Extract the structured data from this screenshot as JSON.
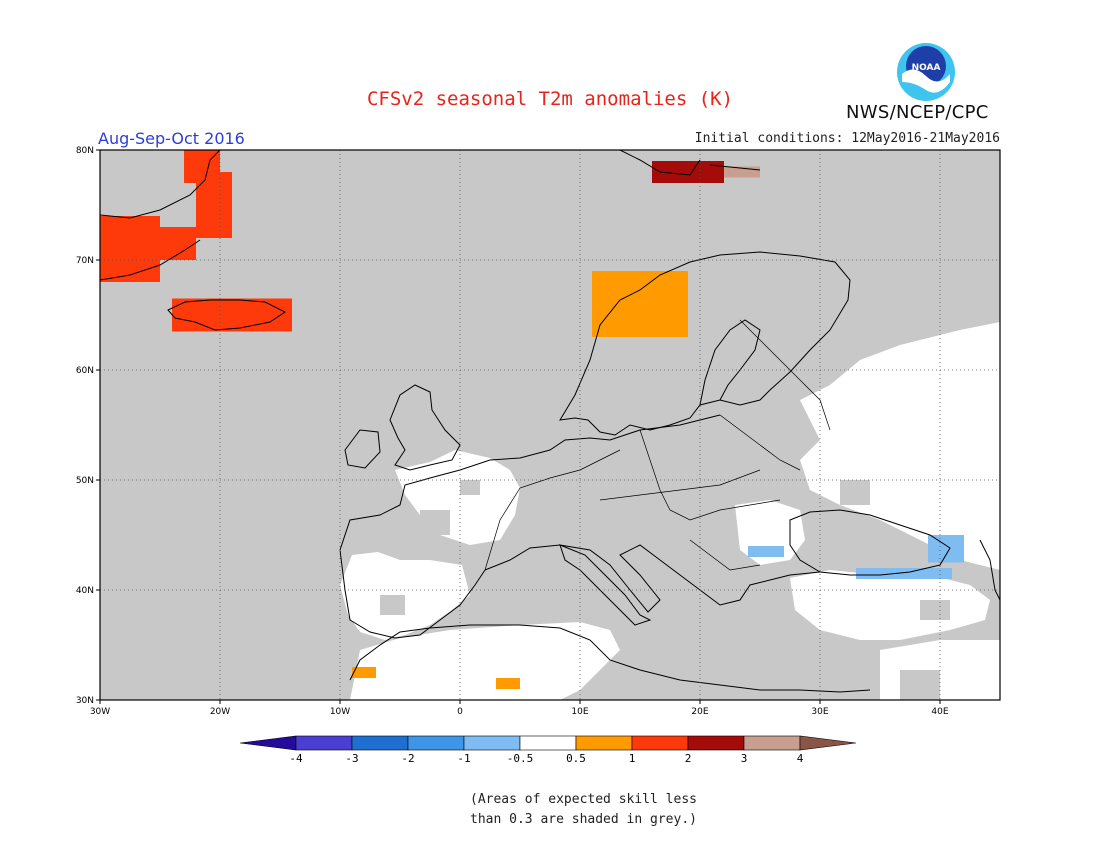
{
  "header": {
    "title": "CFSv2 seasonal T2m anomalies (K)",
    "agency": "NWS/NCEP/CPC",
    "logo_text": "NOAA",
    "period": "Aug-Sep-Oct 2016",
    "initial_conditions": "Initial conditions: 12May2016-21May2016"
  },
  "map": {
    "lon_range": [
      -30,
      45
    ],
    "lat_range": [
      30,
      80
    ],
    "lon_ticks": [
      {
        "value": -30,
        "label": "30W"
      },
      {
        "value": -20,
        "label": "20W"
      },
      {
        "value": -10,
        "label": "10W"
      },
      {
        "value": 0,
        "label": "0"
      },
      {
        "value": 10,
        "label": "10E"
      },
      {
        "value": 20,
        "label": "20E"
      },
      {
        "value": 30,
        "label": "30E"
      },
      {
        "value": 40,
        "label": "40E"
      }
    ],
    "lat_ticks": [
      {
        "value": 30,
        "label": "30N"
      },
      {
        "value": 40,
        "label": "40N"
      },
      {
        "value": 50,
        "label": "50N"
      },
      {
        "value": 60,
        "label": "60N"
      },
      {
        "value": 70,
        "label": "70N"
      },
      {
        "value": 80,
        "label": "80N"
      }
    ],
    "grid": true,
    "background_color": "#c8c8c8",
    "anomaly_patches": [
      {
        "name": "Greenland coast",
        "category": "1 to 2",
        "lon": [
          -30,
          -25
        ],
        "lat": [
          68,
          74
        ]
      },
      {
        "name": "Greenland east",
        "category": "1 to 2",
        "lon": [
          -25,
          -22
        ],
        "lat": [
          70,
          73
        ]
      },
      {
        "name": "Greenland far northeast",
        "category": "1 to 2",
        "lon": [
          -23,
          -20
        ],
        "lat": [
          77,
          80
        ]
      },
      {
        "name": "Greenland interior coast",
        "category": "1 to 2",
        "lon": [
          -22,
          -19
        ],
        "lat": [
          72,
          78
        ]
      },
      {
        "name": "Iceland",
        "category": "1 to 2",
        "lon": [
          -24,
          -14
        ],
        "lat": [
          63.5,
          66.5
        ]
      },
      {
        "name": "Svalbard",
        "category": "2 to 3",
        "lon": [
          16,
          22
        ],
        "lat": [
          77,
          79
        ]
      },
      {
        "name": "Svalbard east",
        "category": "3 to 4",
        "lon": [
          22,
          25
        ],
        "lat": [
          77.5,
          78.5
        ]
      },
      {
        "name": "Norway coast",
        "category": "0.5 to 1",
        "lon": [
          11,
          19
        ],
        "lat": [
          63,
          69
        ]
      },
      {
        "name": "Morocco",
        "category": "0.5 to 1",
        "lon": [
          -9,
          -7
        ],
        "lat": [
          32,
          33
        ]
      },
      {
        "name": "Algeria",
        "category": "0.5 to 1",
        "lon": [
          3,
          5
        ],
        "lat": [
          31,
          32
        ]
      },
      {
        "name": "Black Sea south",
        "category": "-1 to -0.5",
        "lon": [
          33,
          41
        ],
        "lat": [
          41,
          42
        ]
      },
      {
        "name": "Caucasus",
        "category": "-1 to -0.5",
        "lon": [
          39,
          42
        ],
        "lat": [
          42.5,
          45
        ]
      },
      {
        "name": "Lower Danube",
        "category": "-1 to -0.5",
        "lon": [
          24,
          27
        ],
        "lat": [
          43,
          44
        ]
      }
    ],
    "white_regions": [
      "Iberia",
      "France",
      "North Africa",
      "Turkey",
      "Ukraine",
      "Western Russia"
    ]
  },
  "colorbar": {
    "ticks": [
      "-4",
      "-3",
      "-2",
      "-1",
      "-0.5",
      "0.5",
      "1",
      "2",
      "3",
      "4"
    ],
    "colors": [
      "#240b9c",
      "#4a3fd0",
      "#1f6fd2",
      "#3f95e8",
      "#7fbcf2",
      "#ffffff",
      "#ff9a00",
      "#ff3a0a",
      "#a50b08",
      "#c89f8f",
      "#8a5547"
    ]
  },
  "footnote": {
    "line1": "(Areas of expected skill less",
    "line2": "than 0.3 are shaded in grey.)"
  }
}
